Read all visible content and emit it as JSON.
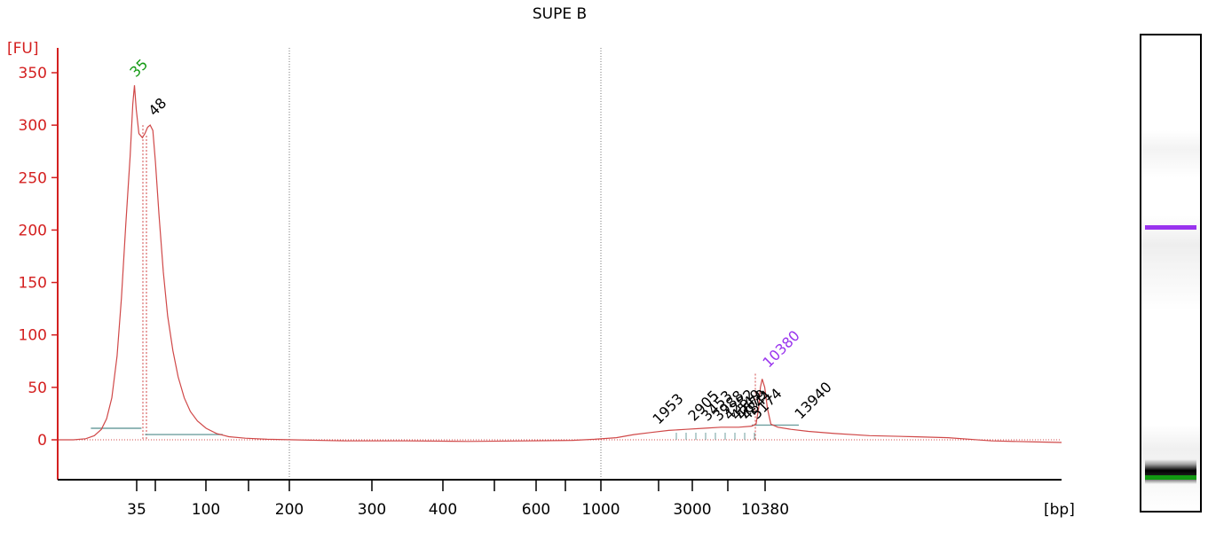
{
  "colors": {
    "trace": "#d04848",
    "axis": "#d42020",
    "lower_marker": "#119911",
    "upper_marker": "#9933ee",
    "baseline": "#6f9f9f",
    "grid": "#777777"
  },
  "chart_data": {
    "type": "line",
    "title": "SUPE B",
    "ylabel": "[FU]",
    "xlabel": "[bp]",
    "ylim": [
      -37,
      375
    ],
    "yticks": [
      0,
      50,
      100,
      150,
      200,
      250,
      300,
      350
    ],
    "xticks": [
      {
        "label": "35"
      },
      {
        "label": ""
      },
      {
        "label": "100"
      },
      {
        "label": ""
      },
      {
        "label": "200"
      },
      {
        "label": "300"
      },
      {
        "label": "400"
      },
      {
        "label": ""
      },
      {
        "label": "600"
      },
      {
        "label": ""
      },
      {
        "label": "1000"
      },
      {
        "label": ""
      },
      {
        "label": "3000"
      },
      {
        "label": ""
      },
      {
        "label": "10380"
      }
    ],
    "gridlines": [
      "200",
      "1000"
    ],
    "peak_labels": [
      {
        "text": "35",
        "color": "lower_marker",
        "fu": 340
      },
      {
        "text": "48",
        "color": "default",
        "fu": 303
      },
      {
        "text": "1953",
        "color": "default",
        "fu": 9
      },
      {
        "text": "2905",
        "color": "default",
        "fu": 12
      },
      {
        "text": "3453",
        "color": "default",
        "fu": 12
      },
      {
        "text": "3988",
        "color": "default",
        "fu": 12
      },
      {
        "text": "4282",
        "color": "default",
        "fu": 13
      },
      {
        "text": "4549",
        "color": "default",
        "fu": 13
      },
      {
        "text": "4679",
        "color": "default",
        "fu": 13
      },
      {
        "text": "4841",
        "color": "default",
        "fu": 13
      },
      {
        "text": "5174",
        "color": "default",
        "fu": 14
      },
      {
        "text": "10380",
        "color": "upper_marker",
        "fu": 63
      },
      {
        "text": "13940",
        "color": "default",
        "fu": 14
      }
    ],
    "trace_points": [
      [
        0,
        0
      ],
      [
        18,
        0
      ],
      [
        32,
        1
      ],
      [
        42,
        4
      ],
      [
        50,
        10
      ],
      [
        56,
        20
      ],
      [
        62,
        40
      ],
      [
        68,
        80
      ],
      [
        73,
        135
      ],
      [
        78,
        205
      ],
      [
        83,
        270
      ],
      [
        86,
        320
      ],
      [
        88,
        338
      ],
      [
        90,
        315
      ],
      [
        93,
        292
      ],
      [
        97,
        288
      ],
      [
        100,
        292
      ],
      [
        103,
        298
      ],
      [
        106,
        300
      ],
      [
        109,
        295
      ],
      [
        112,
        265
      ],
      [
        116,
        215
      ],
      [
        121,
        160
      ],
      [
        126,
        118
      ],
      [
        132,
        85
      ],
      [
        138,
        60
      ],
      [
        145,
        40
      ],
      [
        152,
        27
      ],
      [
        160,
        18
      ],
      [
        170,
        11
      ],
      [
        182,
        6
      ],
      [
        196,
        3
      ],
      [
        215,
        1.5
      ],
      [
        240,
        0.5
      ],
      [
        270,
        0
      ],
      [
        330,
        -1
      ],
      [
        400,
        -1
      ],
      [
        470,
        -1.5
      ],
      [
        540,
        -1
      ],
      [
        590,
        -0.5
      ],
      [
        615,
        0.5
      ],
      [
        640,
        2
      ],
      [
        660,
        5
      ],
      [
        680,
        7
      ],
      [
        700,
        9
      ],
      [
        720,
        10
      ],
      [
        740,
        11
      ],
      [
        760,
        12
      ],
      [
        780,
        12
      ],
      [
        795,
        13
      ],
      [
        800,
        15
      ],
      [
        803,
        30
      ],
      [
        805,
        50
      ],
      [
        807,
        58
      ],
      [
        810,
        50
      ],
      [
        813,
        30
      ],
      [
        817,
        15
      ],
      [
        825,
        12
      ],
      [
        840,
        10
      ],
      [
        860,
        8
      ],
      [
        890,
        6
      ],
      [
        930,
        4
      ],
      [
        980,
        3
      ],
      [
        1020,
        2
      ],
      [
        1070,
        -1
      ],
      [
        1120,
        -2
      ],
      [
        1150,
        -2.5
      ]
    ],
    "lower_marker_region": [
      {
        "start": 38,
        "end": 96,
        "fu": 11
      }
    ],
    "baselines": [
      {
        "start": 100,
        "end": 189,
        "fu": 5
      },
      {
        "start": 795,
        "end": 849,
        "fu": 14
      }
    ]
  },
  "gel": {
    "label": "",
    "bands": [
      "upper_marker",
      "sample",
      "lower_marker"
    ]
  }
}
